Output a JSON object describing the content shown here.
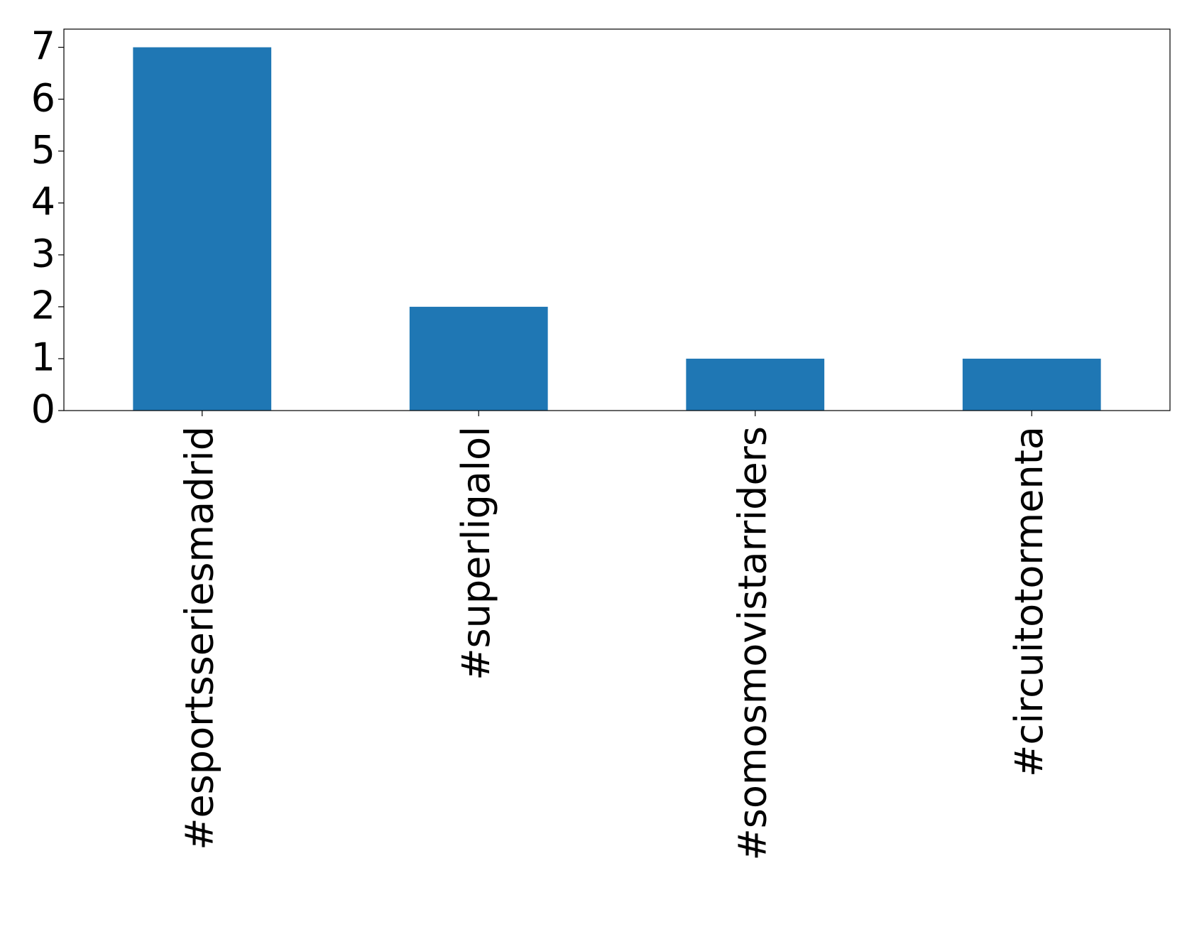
{
  "chart_data": {
    "type": "bar",
    "categories": [
      "#esportsseriesmadrid",
      "#superligalol",
      "#somosmovistarriders",
      "#circuitotormenta"
    ],
    "values": [
      7,
      2,
      1,
      1
    ],
    "color": "#1f77b4",
    "ylim": [
      0,
      7.35
    ],
    "yticks": [
      0,
      1,
      2,
      3,
      4,
      5,
      6,
      7
    ]
  }
}
